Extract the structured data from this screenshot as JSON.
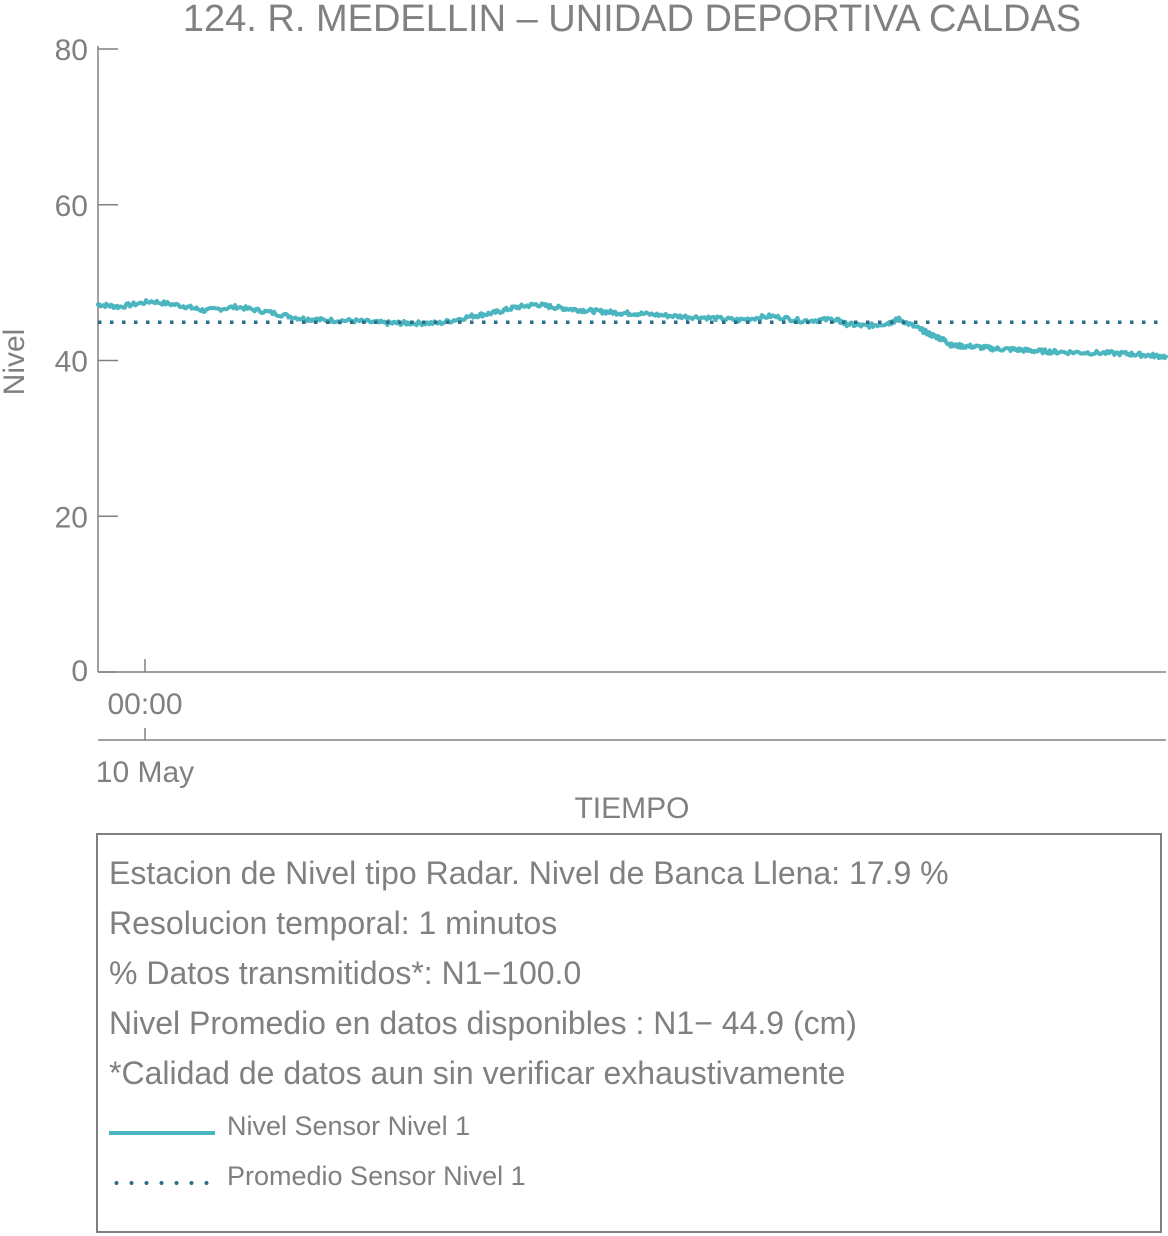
{
  "chart_data": {
    "type": "line",
    "title": "124. R. MEDELLIN – UNIDAD DEPORTIVA CALDAS",
    "xlabel": "TIEMPO",
    "ylabel": "Nivel",
    "ylim": [
      0,
      80
    ],
    "yticks": [
      "0",
      "20",
      "40",
      "60",
      "80"
    ],
    "xticks": [
      {
        "time": "00:00",
        "date": "10 May"
      }
    ],
    "grid": false,
    "series": [
      {
        "name": "Nivel Sensor Nivel 1",
        "color": "#4bb6c0",
        "style": "solid",
        "x_fraction": [
          0,
          0.02,
          0.05,
          0.08,
          0.1,
          0.13,
          0.16,
          0.19,
          0.21,
          0.24,
          0.27,
          0.29,
          0.32,
          0.35,
          0.37,
          0.39,
          0.41,
          0.43,
          0.45,
          0.47,
          0.49,
          0.51,
          0.54,
          0.57,
          0.6,
          0.63,
          0.66,
          0.69,
          0.7,
          0.72,
          0.74,
          0.75,
          0.77,
          0.78,
          0.79,
          0.8,
          0.82,
          0.84,
          0.86,
          0.88,
          0.9,
          0.93,
          0.96,
          0.98,
          1.0
        ],
        "values": [
          47.2,
          46.9,
          47.6,
          47.0,
          46.4,
          46.9,
          46.2,
          45.4,
          45.2,
          45.1,
          44.8,
          44.8,
          44.8,
          45.7,
          46.1,
          46.8,
          47.2,
          46.8,
          46.5,
          46.3,
          46.1,
          46.0,
          45.7,
          45.5,
          45.2,
          45.7,
          45.1,
          45.3,
          44.7,
          44.4,
          44.8,
          45.3,
          44.0,
          43.3,
          42.8,
          41.9,
          41.8,
          41.5,
          41.4,
          41.2,
          41.1,
          41.0,
          40.9,
          40.7,
          40.5
        ]
      },
      {
        "name": "Promedio Sensor Nivel 1",
        "color": "#2c6e8a",
        "style": "dotted",
        "x_fraction": [
          0,
          1
        ],
        "values": [
          44.9,
          44.9
        ]
      }
    ]
  },
  "info_box": {
    "lines": [
      "Estacion de Nivel tipo Radar. Nivel de Banca Llena: 17.9 %",
      "Resolucion temporal: 1 minutos",
      "% Datos transmitidos*: N1−100.0",
      "Nivel Promedio en datos disponibles : N1− 44.9 (cm)",
      "*Calidad de datos aun sin verificar exhaustivamente"
    ],
    "legend": [
      {
        "label": "Nivel Sensor Nivel 1",
        "style": "solid",
        "color": "#4bb6c0"
      },
      {
        "label": "Promedio Sensor Nivel 1",
        "style": "dotted",
        "color": "#2c6e8a"
      }
    ]
  }
}
